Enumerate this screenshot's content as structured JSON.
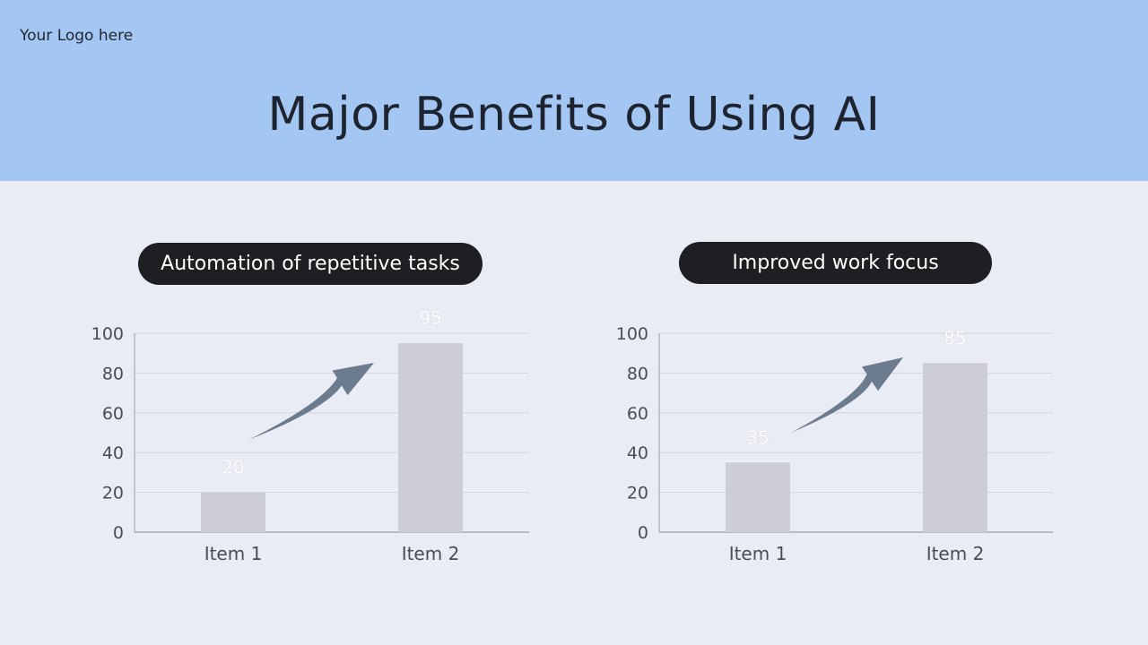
{
  "header": {
    "logo_text": "Your Logo here",
    "title": "Major Benefits of Using AI"
  },
  "colors": {
    "header_bg": "#a4c6f2",
    "page_bg": "#e9ecf5",
    "pill_bg": "#1e1f22",
    "bar": "#cdcdd6",
    "arrow": "#6d7b8e",
    "grid": "#d3d5de",
    "axis": "#9a9ca6",
    "tick_text": "#4a4d55",
    "data_label": "#ffffff"
  },
  "panels": [
    {
      "label": "Automation of repetitive tasks"
    },
    {
      "label": "Improved work focus"
    }
  ],
  "chart_data": [
    {
      "type": "bar",
      "categories": [
        "Item 1",
        "Item 2"
      ],
      "values": [
        20,
        95
      ],
      "title": "",
      "xlabel": "",
      "ylabel": "",
      "ylim": [
        0,
        100
      ],
      "yticks": [
        0,
        20,
        40,
        60,
        80,
        100
      ],
      "grid": true,
      "data_labels": true,
      "trend_arrow": "up"
    },
    {
      "type": "bar",
      "categories": [
        "Item 1",
        "Item 2"
      ],
      "values": [
        35,
        85
      ],
      "title": "",
      "xlabel": "",
      "ylabel": "",
      "ylim": [
        0,
        100
      ],
      "yticks": [
        0,
        20,
        40,
        60,
        80,
        100
      ],
      "grid": true,
      "data_labels": true,
      "trend_arrow": "up"
    }
  ]
}
